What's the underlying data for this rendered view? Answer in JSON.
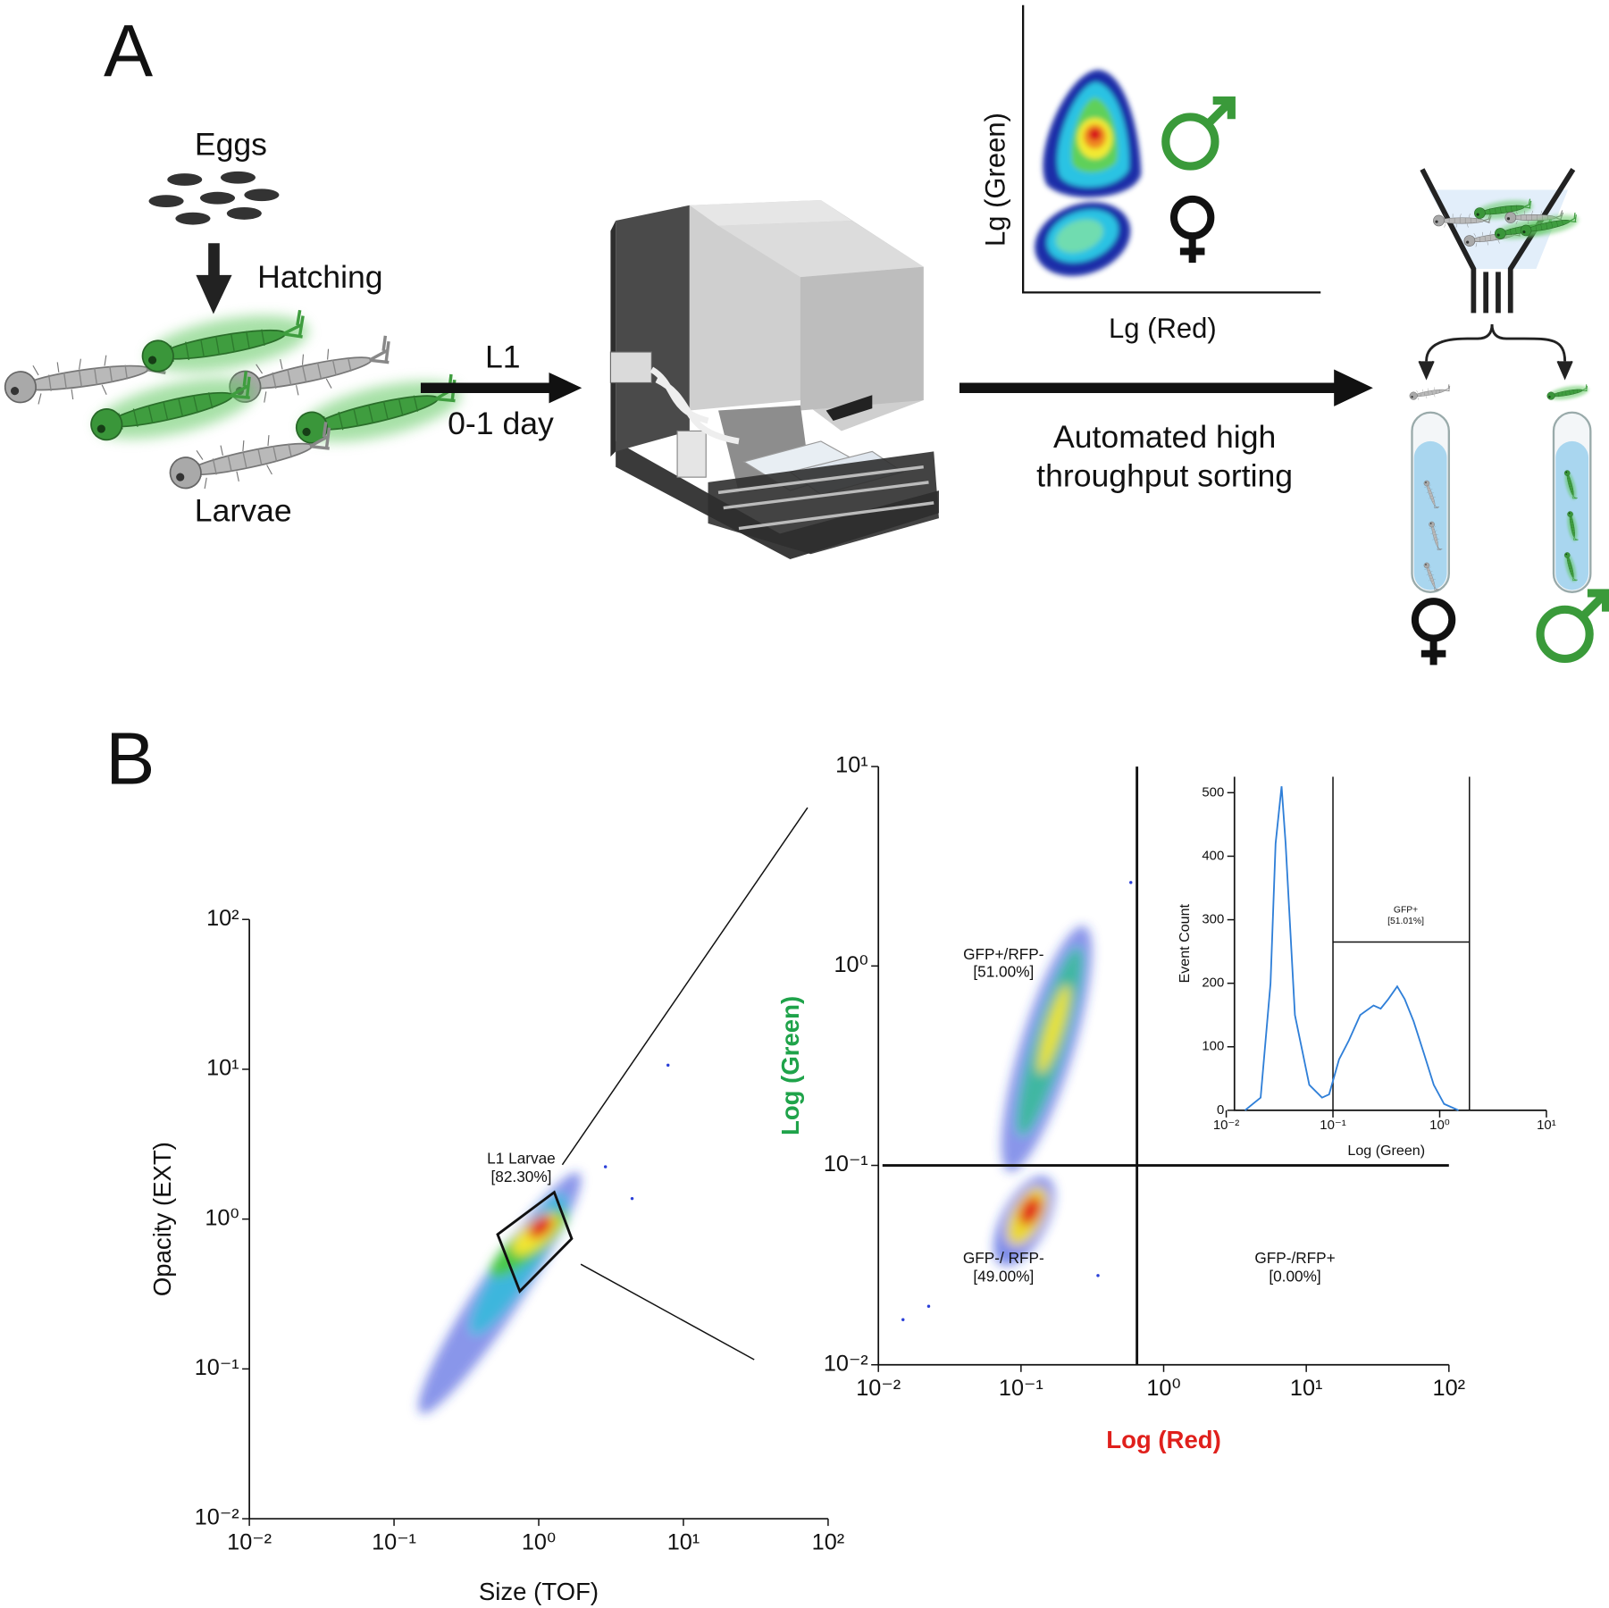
{
  "panel_a": {
    "label": "A",
    "eggs": "Eggs",
    "hatching": "Hatching",
    "larvae": "Larvae",
    "stage": "L1",
    "age": "0-1 day",
    "plot_y": "Lg (Green)",
    "plot_x": "Lg (Red)",
    "sorting": [
      "Automated high",
      "throughput sorting"
    ]
  },
  "panel_b": {
    "label": "B"
  },
  "chart_data": [
    {
      "type": "scatter",
      "xlabel": "Size (TOF)",
      "ylabel": "Opacity (EXT)",
      "log": true,
      "xlim": [
        0.01,
        100
      ],
      "ylim": [
        0.01,
        100
      ],
      "xticks": [
        {
          "value": 0.01,
          "label": "10⁻²"
        },
        {
          "value": 0.1,
          "label": "10⁻¹"
        },
        {
          "value": 1,
          "label": "10⁰"
        },
        {
          "value": 10,
          "label": "10¹"
        },
        {
          "value": 100,
          "label": "10²"
        }
      ],
      "yticks": [
        {
          "value": 0.01,
          "label": "10⁻²"
        },
        {
          "value": 0.1,
          "label": "10⁻¹"
        },
        {
          "value": 1,
          "label": "10⁰"
        },
        {
          "value": 10,
          "label": "10¹"
        },
        {
          "value": 100,
          "label": "10²"
        }
      ],
      "gate": {
        "name": "L1 Larvae",
        "label": "[82.30%]",
        "x": [
          0.52,
          1.28,
          1.69,
          0.74
        ],
        "y": [
          0.79,
          1.51,
          0.74,
          0.33
        ]
      }
    },
    {
      "type": "scatter",
      "xlabel": "Log (Red)",
      "ylabel": "Log (Green)",
      "xlabel_color": "#e0201c",
      "ylabel_color": "#1fa34a",
      "log": true,
      "xlim": [
        0.01,
        100
      ],
      "ylim": [
        0.01,
        10
      ],
      "xticks": [
        {
          "value": 0.01,
          "label": "10⁻²"
        },
        {
          "value": 0.1,
          "label": "10⁻¹"
        },
        {
          "value": 1,
          "label": "10⁰"
        },
        {
          "value": 10,
          "label": "10¹"
        },
        {
          "value": 100,
          "label": "10²"
        }
      ],
      "yticks": [
        {
          "value": 0.01,
          "label": "10⁻²"
        },
        {
          "value": 0.1,
          "label": "10⁻¹"
        },
        {
          "value": 1,
          "label": "10⁰"
        },
        {
          "value": 10,
          "label": "10¹"
        }
      ],
      "gate": {
        "x": 0.65,
        "y": 0.1
      },
      "quadrants": [
        {
          "name": "GFP+/RFP-",
          "label": "[51.00%]"
        },
        {
          "name": "GFP-/ RFP-",
          "label": "[49.00%]"
        },
        {
          "name": "GFP-/RFP+",
          "label": "[0.00%]"
        }
      ]
    },
    {
      "type": "line",
      "xlabel": "Log (Green)",
      "ylabel": "Event Count",
      "log_x": true,
      "xlim": [
        0.01,
        10
      ],
      "ylim": [
        0,
        525
      ],
      "xticks": [
        {
          "value": 0.01,
          "label": "10⁻²"
        },
        {
          "value": 0.1,
          "label": "10⁻¹"
        },
        {
          "value": 1,
          "label": "10⁰"
        },
        {
          "value": 10,
          "label": "10¹"
        }
      ],
      "yticks": [
        0,
        100,
        200,
        300,
        400,
        500
      ],
      "series": [
        {
          "color": "#2f7fd8",
          "x": [
            0.015,
            0.021,
            0.026,
            0.029,
            0.033,
            0.036,
            0.044,
            0.06,
            0.079,
            0.092,
            0.114,
            0.141,
            0.18,
            0.24,
            0.28,
            0.33,
            0.4,
            0.47,
            0.57,
            0.71,
            0.88,
            1.1,
            1.5
          ],
          "values": [
            0,
            20,
            200,
            420,
            510,
            420,
            150,
            40,
            20,
            25,
            80,
            110,
            150,
            165,
            160,
            175,
            195,
            175,
            140,
            90,
            40,
            10,
            0
          ]
        }
      ],
      "gate": {
        "name": "GFP+",
        "label": "[51.01%]",
        "x": [
          0.1,
          1.9
        ],
        "y": 265
      }
    }
  ]
}
